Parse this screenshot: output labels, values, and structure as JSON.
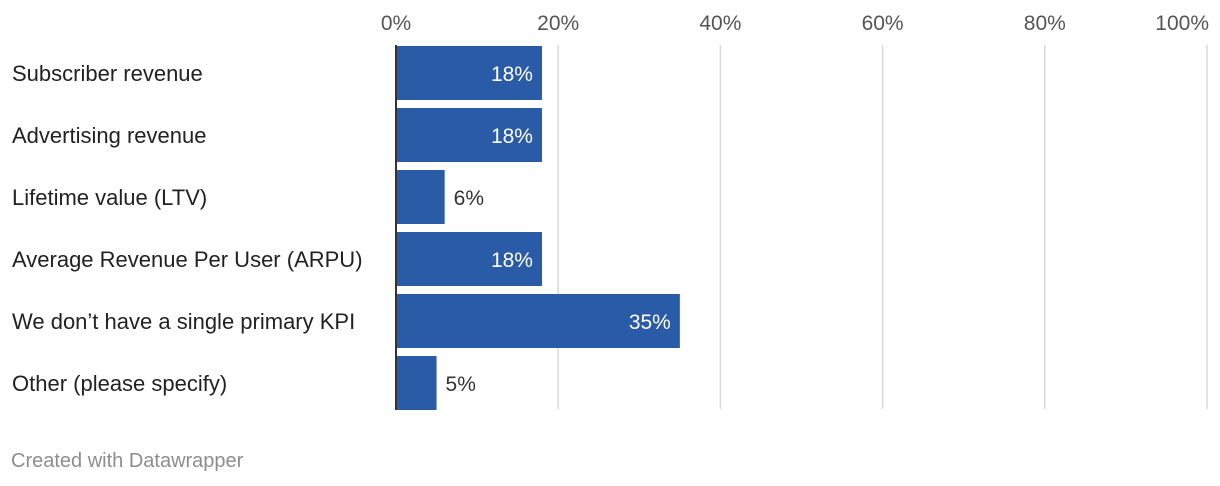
{
  "chart_data": {
    "type": "bar",
    "orientation": "horizontal",
    "categories": [
      "Subscriber revenue",
      "Advertising revenue",
      "Lifetime value (LTV)",
      "Average Revenue Per User (ARPU)",
      "We don’t have a single primary KPI",
      "Other (please specify)"
    ],
    "values": [
      18,
      18,
      6,
      18,
      35,
      5
    ],
    "value_labels": [
      "18%",
      "18%",
      "6%",
      "18%",
      "35%",
      "5%"
    ],
    "xlim": [
      0,
      100
    ],
    "xticks": [
      0,
      20,
      40,
      60,
      80,
      100
    ],
    "xtick_labels": [
      "0%",
      "20%",
      "40%",
      "60%",
      "80%",
      "100%"
    ],
    "axis_position": "top",
    "grid": true,
    "title": "",
    "xlabel": "",
    "ylabel": "",
    "bar_color": "#2a5ba7",
    "grid_color": "#d9d9d9",
    "baseline_color": "#333333"
  },
  "footer": {
    "credit": "Created with Datawrapper"
  }
}
